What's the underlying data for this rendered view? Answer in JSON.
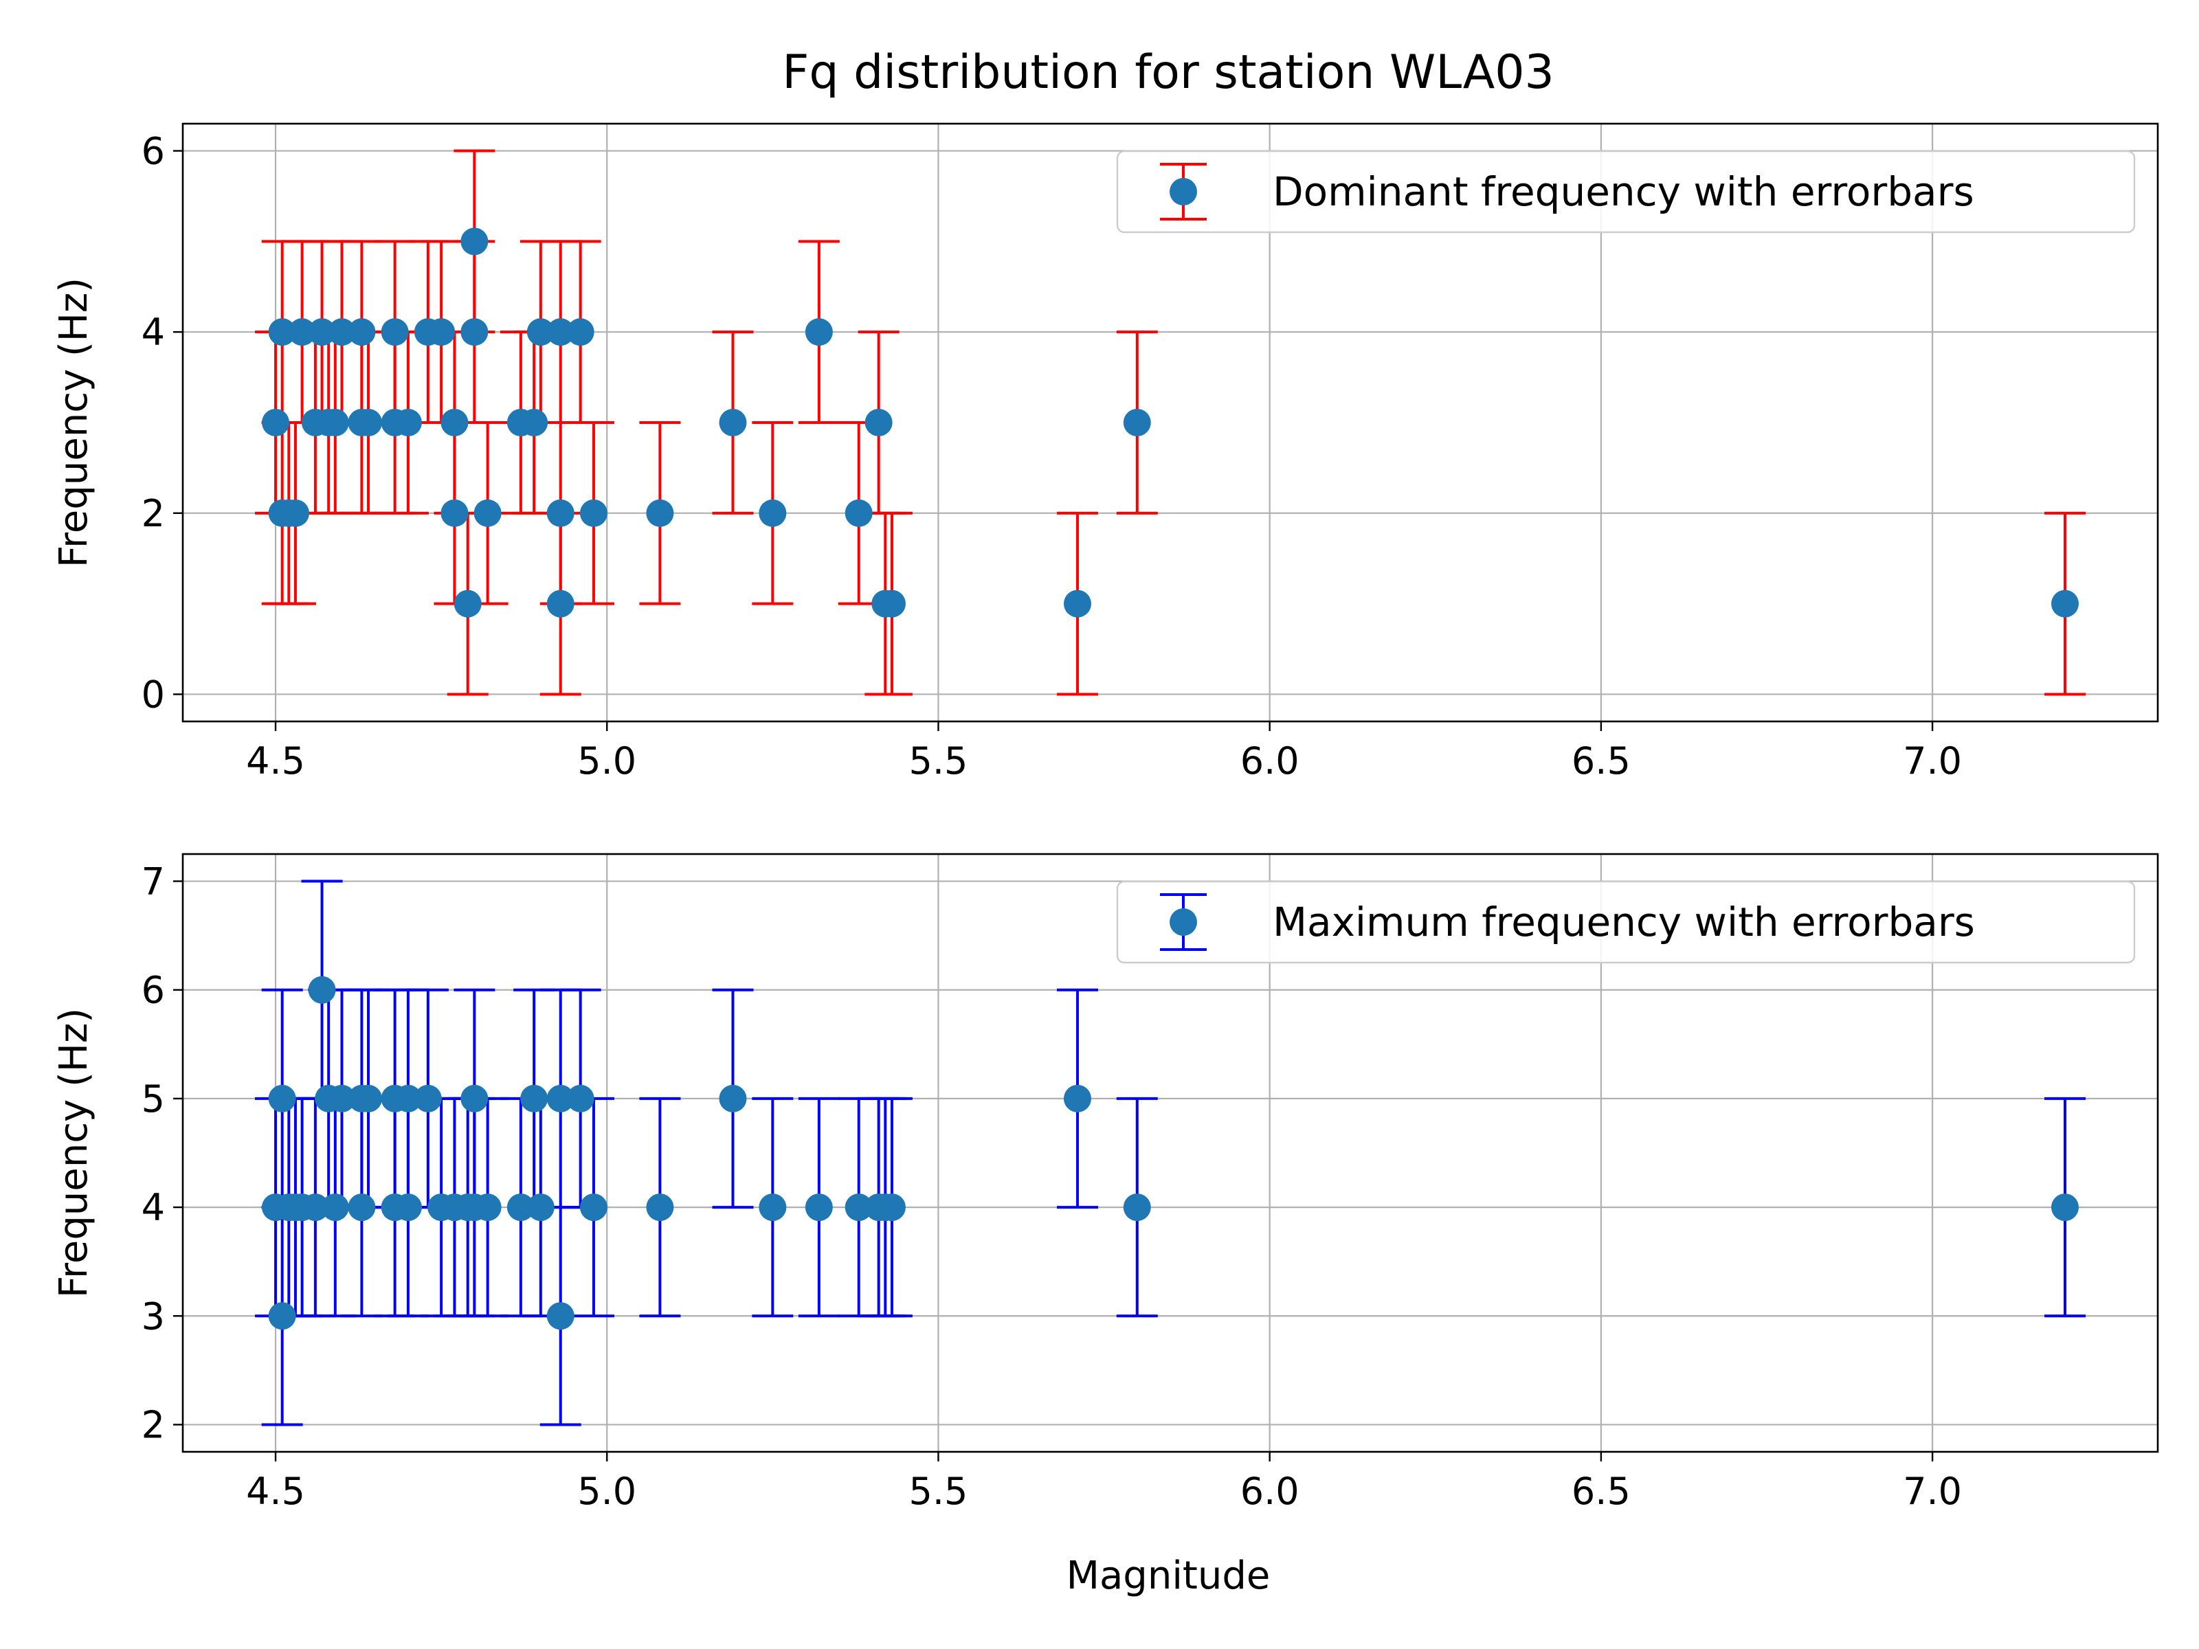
{
  "chart_data": {
    "title": "Fq distribution for station WLA03",
    "xlabel": "Magnitude",
    "xlim": [
      4.36,
      7.34
    ],
    "xticks": [
      4.5,
      5.0,
      5.5,
      6.0,
      6.5,
      7.0
    ],
    "xtick_labels": [
      "4.5",
      "5.0",
      "5.5",
      "6.0",
      "6.5",
      "7.0"
    ],
    "grid": true,
    "legend_position": "top-right",
    "marker_color": "#1f77b4",
    "panels": [
      {
        "type": "scatter",
        "ylabel": "Frequency (Hz)",
        "ylim": [
          -0.3,
          6.3
        ],
        "yticks": [
          0,
          2,
          4,
          6
        ],
        "ytick_labels": [
          "0",
          "2",
          "4",
          "6"
        ],
        "legend": "Dominant frequency with errorbars",
        "errorbar_color": "#ff0000",
        "error": 1,
        "points": [
          {
            "x": 4.5,
            "y": 3
          },
          {
            "x": 4.51,
            "y": 2
          },
          {
            "x": 4.51,
            "y": 4
          },
          {
            "x": 4.52,
            "y": 2
          },
          {
            "x": 4.53,
            "y": 2
          },
          {
            "x": 4.54,
            "y": 4
          },
          {
            "x": 4.56,
            "y": 3
          },
          {
            "x": 4.57,
            "y": 4
          },
          {
            "x": 4.58,
            "y": 3
          },
          {
            "x": 4.59,
            "y": 3
          },
          {
            "x": 4.6,
            "y": 4
          },
          {
            "x": 4.63,
            "y": 3
          },
          {
            "x": 4.63,
            "y": 4
          },
          {
            "x": 4.64,
            "y": 3
          },
          {
            "x": 4.68,
            "y": 4
          },
          {
            "x": 4.68,
            "y": 3
          },
          {
            "x": 4.7,
            "y": 3
          },
          {
            "x": 4.73,
            "y": 4
          },
          {
            "x": 4.75,
            "y": 4
          },
          {
            "x": 4.77,
            "y": 3
          },
          {
            "x": 4.77,
            "y": 2
          },
          {
            "x": 4.79,
            "y": 1
          },
          {
            "x": 4.8,
            "y": 5
          },
          {
            "x": 4.8,
            "y": 4
          },
          {
            "x": 4.82,
            "y": 2
          },
          {
            "x": 4.87,
            "y": 3
          },
          {
            "x": 4.89,
            "y": 3
          },
          {
            "x": 4.9,
            "y": 4
          },
          {
            "x": 4.93,
            "y": 4
          },
          {
            "x": 4.93,
            "y": 2
          },
          {
            "x": 4.93,
            "y": 1
          },
          {
            "x": 4.96,
            "y": 4
          },
          {
            "x": 4.98,
            "y": 2
          },
          {
            "x": 5.08,
            "y": 2
          },
          {
            "x": 5.19,
            "y": 3
          },
          {
            "x": 5.25,
            "y": 2
          },
          {
            "x": 5.32,
            "y": 4
          },
          {
            "x": 5.38,
            "y": 2
          },
          {
            "x": 5.41,
            "y": 3
          },
          {
            "x": 5.42,
            "y": 1
          },
          {
            "x": 5.43,
            "y": 1
          },
          {
            "x": 5.71,
            "y": 1
          },
          {
            "x": 5.8,
            "y": 3
          },
          {
            "x": 7.2,
            "y": 1
          }
        ]
      },
      {
        "type": "scatter",
        "ylabel": "Frequency (Hz)",
        "ylim": [
          1.75,
          7.25
        ],
        "yticks": [
          2,
          3,
          4,
          5,
          6,
          7
        ],
        "ytick_labels": [
          "2",
          "3",
          "4",
          "5",
          "6",
          "7"
        ],
        "legend": "Maximum frequency with errorbars",
        "errorbar_color": "#0000ff",
        "error": 1,
        "points": [
          {
            "x": 4.5,
            "y": 4
          },
          {
            "x": 4.51,
            "y": 5
          },
          {
            "x": 4.51,
            "y": 3
          },
          {
            "x": 4.52,
            "y": 4
          },
          {
            "x": 4.53,
            "y": 4
          },
          {
            "x": 4.54,
            "y": 4
          },
          {
            "x": 4.56,
            "y": 4
          },
          {
            "x": 4.57,
            "y": 6
          },
          {
            "x": 4.58,
            "y": 5
          },
          {
            "x": 4.59,
            "y": 4
          },
          {
            "x": 4.6,
            "y": 5
          },
          {
            "x": 4.63,
            "y": 4
          },
          {
            "x": 4.63,
            "y": 5
          },
          {
            "x": 4.64,
            "y": 5
          },
          {
            "x": 4.68,
            "y": 5
          },
          {
            "x": 4.68,
            "y": 4
          },
          {
            "x": 4.7,
            "y": 4
          },
          {
            "x": 4.7,
            "y": 5
          },
          {
            "x": 4.73,
            "y": 5
          },
          {
            "x": 4.75,
            "y": 4
          },
          {
            "x": 4.77,
            "y": 4
          },
          {
            "x": 4.79,
            "y": 4
          },
          {
            "x": 4.8,
            "y": 5
          },
          {
            "x": 4.8,
            "y": 4
          },
          {
            "x": 4.82,
            "y": 4
          },
          {
            "x": 4.87,
            "y": 4
          },
          {
            "x": 4.89,
            "y": 5
          },
          {
            "x": 4.9,
            "y": 4
          },
          {
            "x": 4.93,
            "y": 5
          },
          {
            "x": 4.93,
            "y": 3
          },
          {
            "x": 4.96,
            "y": 5
          },
          {
            "x": 4.98,
            "y": 4
          },
          {
            "x": 5.08,
            "y": 4
          },
          {
            "x": 5.19,
            "y": 5
          },
          {
            "x": 5.25,
            "y": 4
          },
          {
            "x": 5.32,
            "y": 4
          },
          {
            "x": 5.38,
            "y": 4
          },
          {
            "x": 5.41,
            "y": 4
          },
          {
            "x": 5.42,
            "y": 4
          },
          {
            "x": 5.43,
            "y": 4
          },
          {
            "x": 5.71,
            "y": 5
          },
          {
            "x": 5.8,
            "y": 4
          },
          {
            "x": 7.2,
            "y": 4
          }
        ]
      }
    ]
  }
}
